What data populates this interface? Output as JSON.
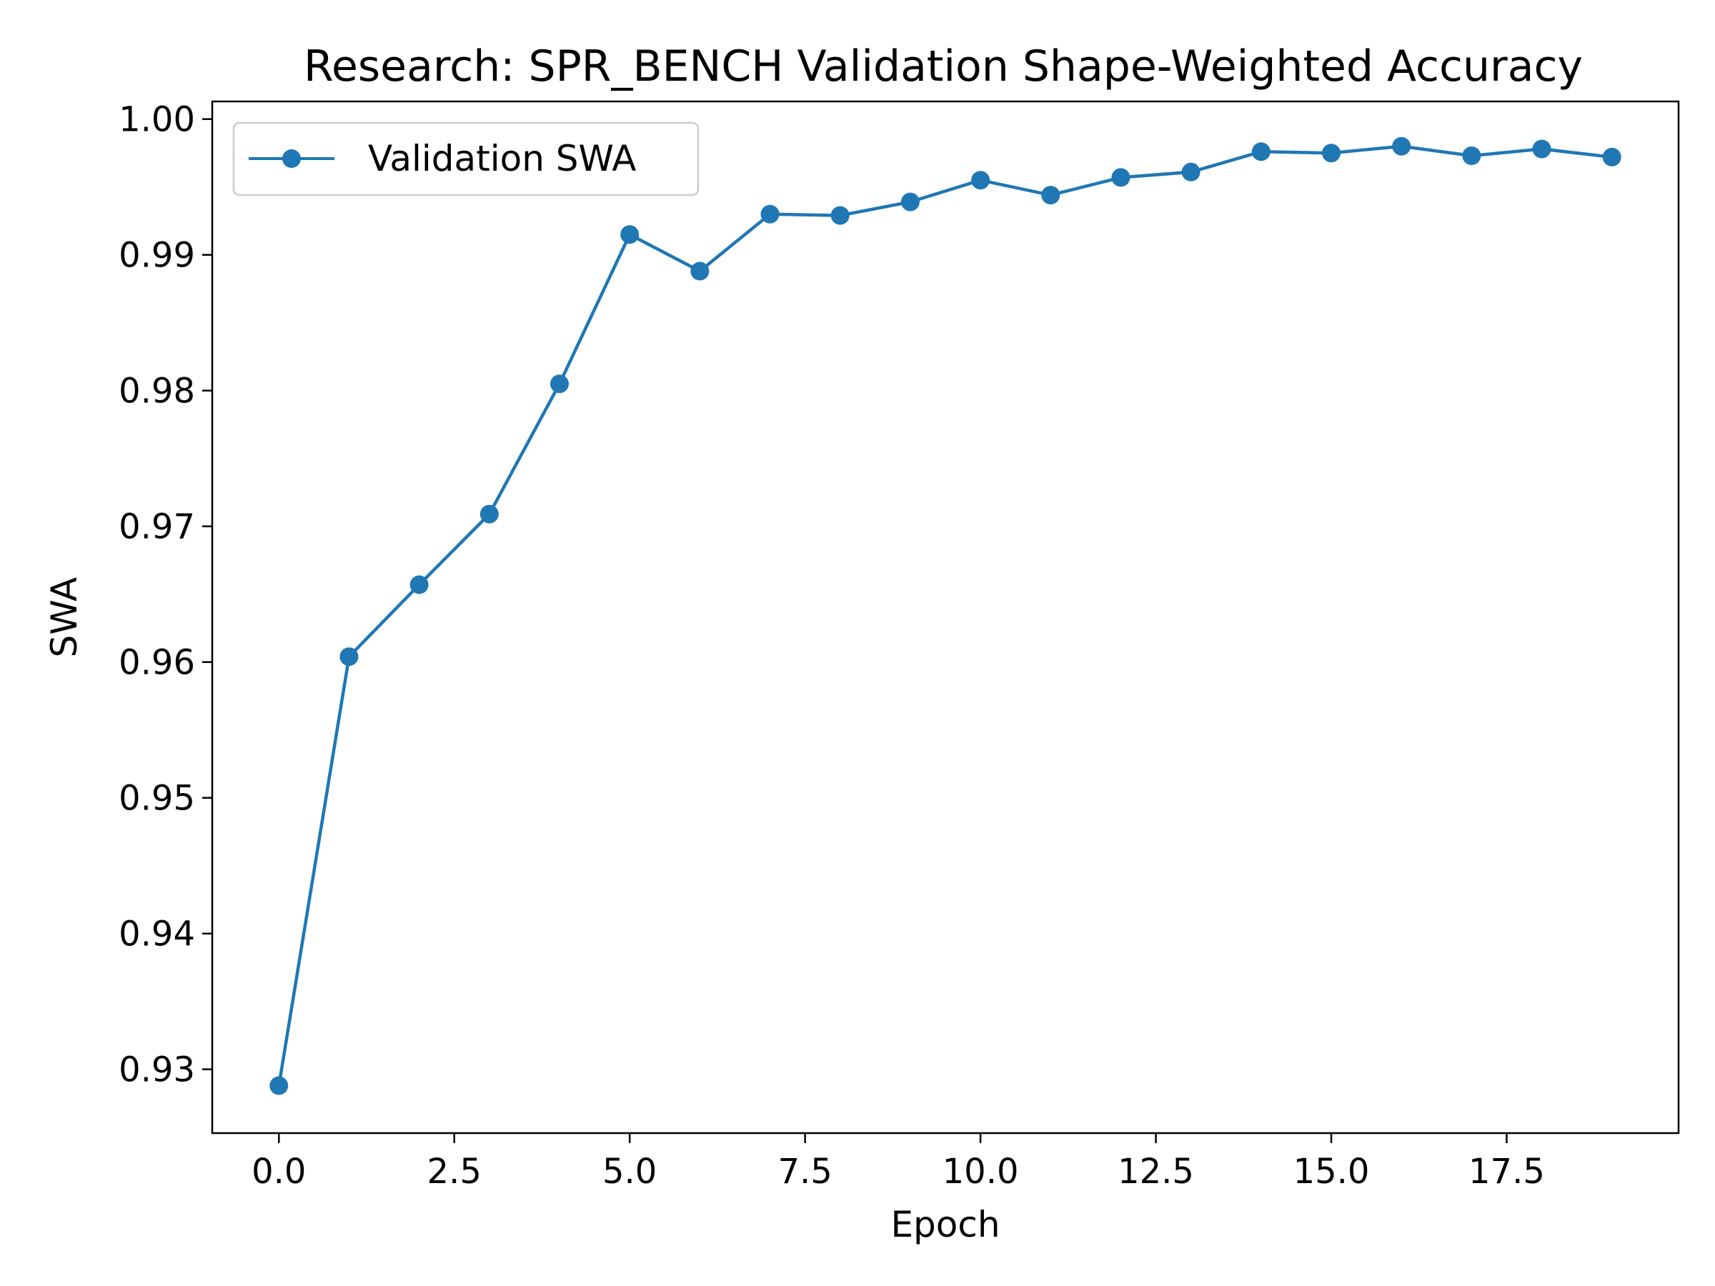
{
  "chart_data": {
    "type": "line",
    "title": "Research: SPR_BENCH Validation Shape-Weighted Accuracy",
    "xlabel": "Epoch",
    "ylabel": "SWA",
    "xlim": [
      -0.95,
      19.95
    ],
    "ylim": [
      0.9253,
      1.0013
    ],
    "xticks": [
      0.0,
      2.5,
      5.0,
      7.5,
      10.0,
      12.5,
      15.0,
      17.5
    ],
    "xtick_labels": [
      "0.0",
      "2.5",
      "5.0",
      "7.5",
      "10.0",
      "12.5",
      "15.0",
      "17.5"
    ],
    "yticks": [
      0.93,
      0.94,
      0.95,
      0.96,
      0.97,
      0.98,
      0.99,
      1.0
    ],
    "ytick_labels": [
      "0.93",
      "0.94",
      "0.95",
      "0.96",
      "0.97",
      "0.98",
      "0.99",
      "1.00"
    ],
    "grid": false,
    "legend_position": "top-left",
    "series": [
      {
        "name": "Validation SWA",
        "color": "#1f77b4",
        "marker": "circle",
        "x": [
          0,
          1,
          2,
          3,
          4,
          5,
          6,
          7,
          8,
          9,
          10,
          11,
          12,
          13,
          14,
          15,
          16,
          17,
          18,
          19
        ],
        "y": [
          0.9288,
          0.9604,
          0.9657,
          0.9709,
          0.9805,
          0.9915,
          0.9888,
          0.993,
          0.9929,
          0.9939,
          0.9955,
          0.9944,
          0.9957,
          0.9961,
          0.9976,
          0.9975,
          0.998,
          0.9973,
          0.9978,
          0.9972
        ]
      }
    ]
  }
}
